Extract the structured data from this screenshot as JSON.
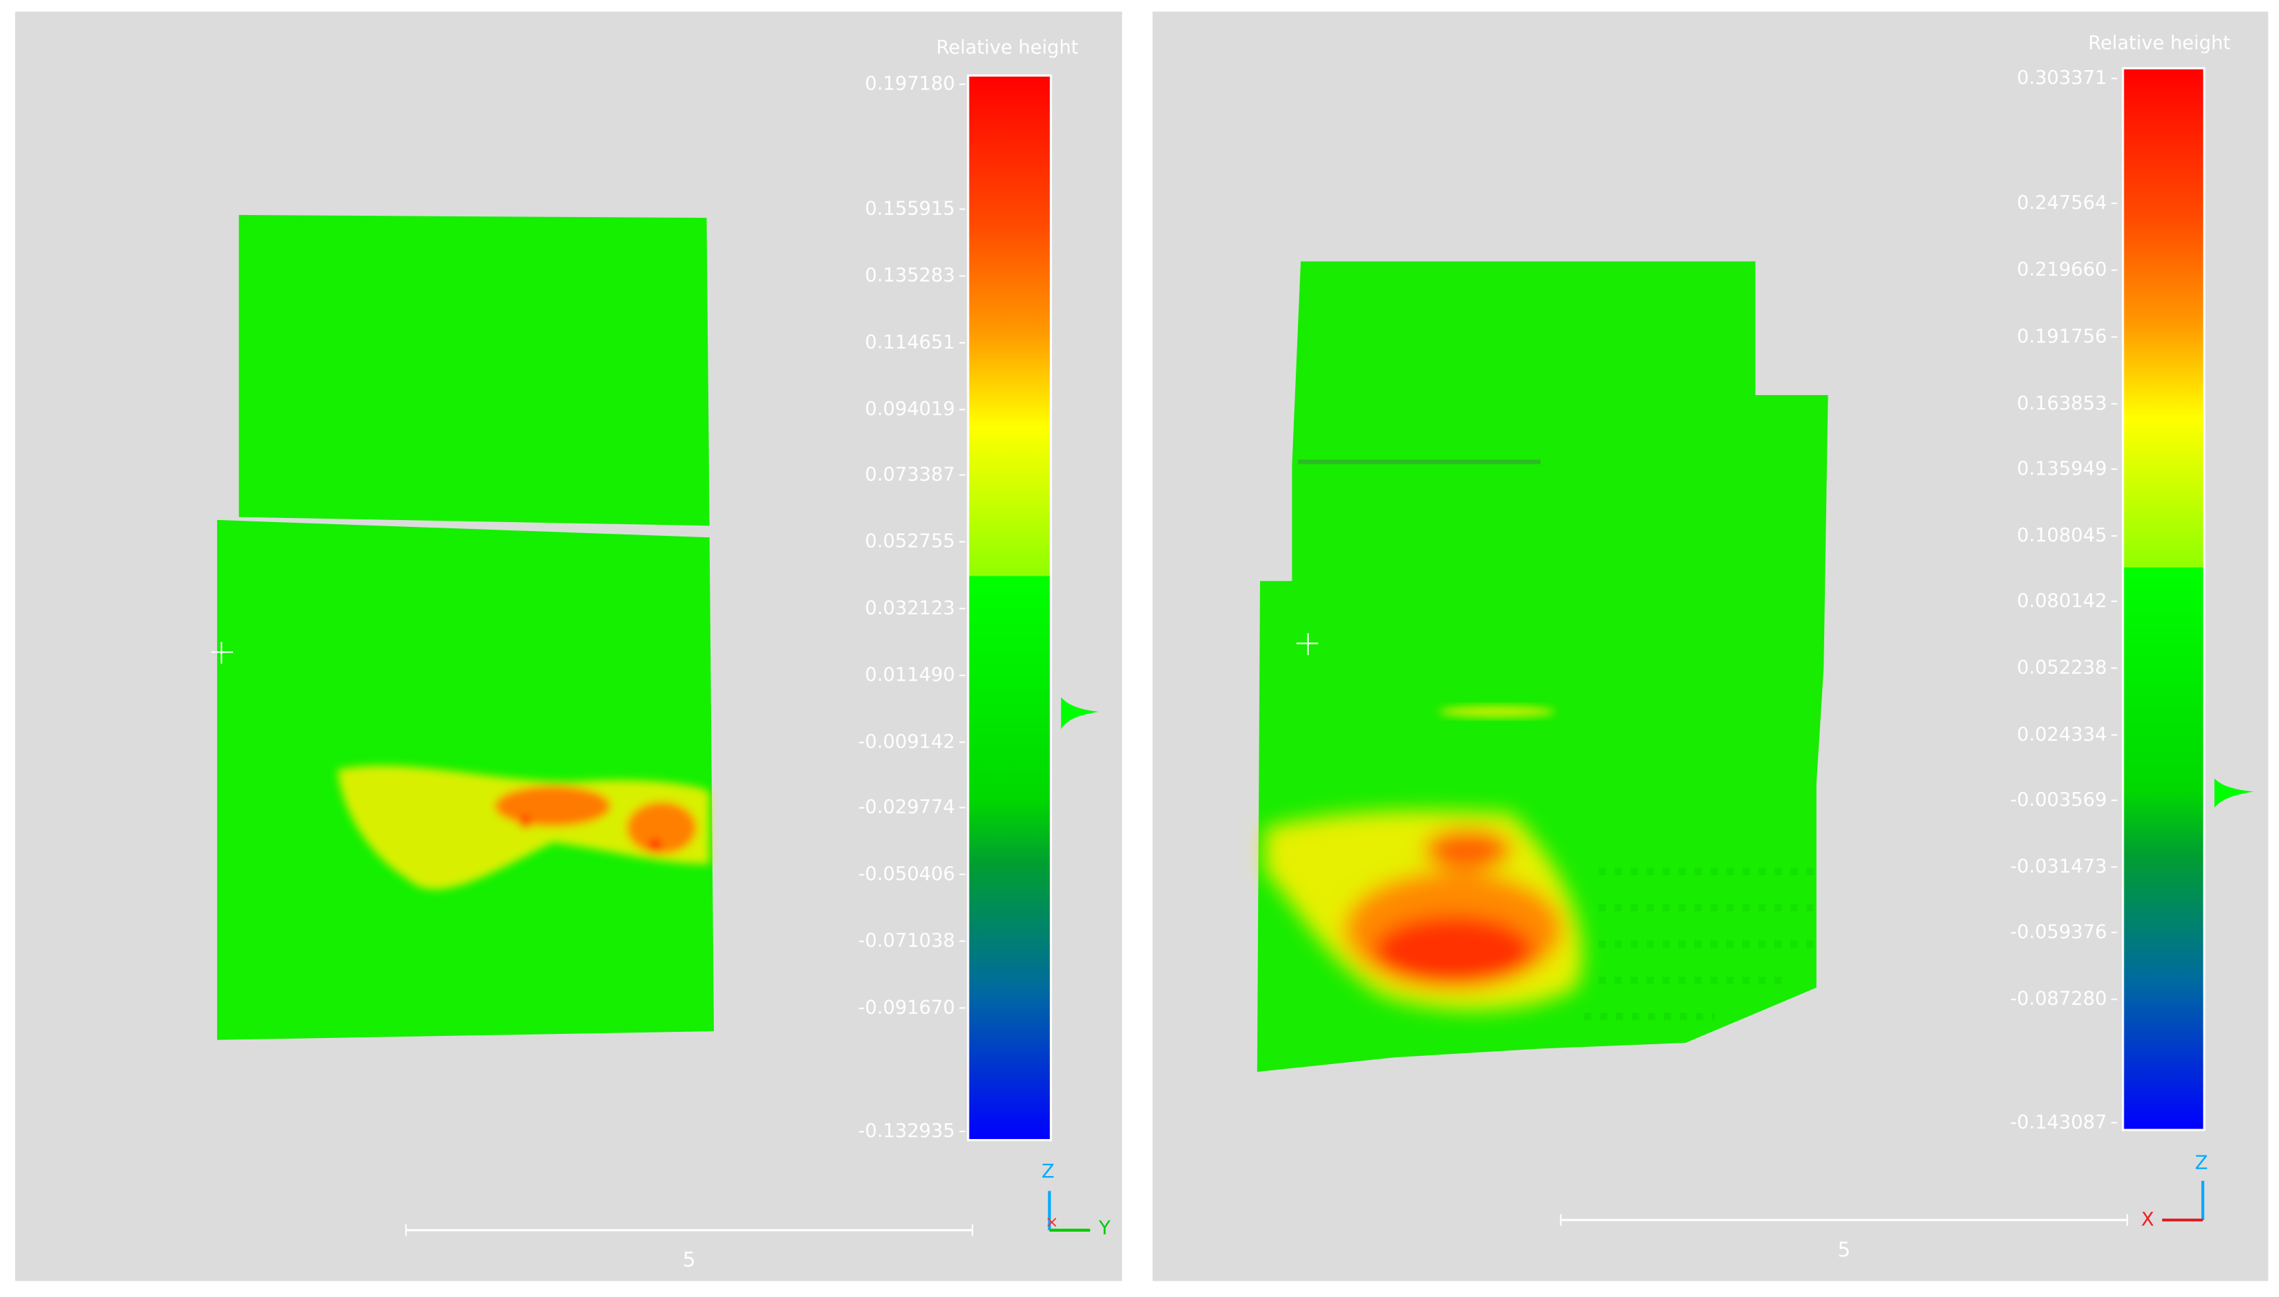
{
  "panels": [
    {
      "color_scale": {
        "title": "Relative height",
        "ticks": [
          "0.197180",
          "0.155915",
          "0.135283",
          "0.114651",
          "0.094019",
          "0.073387",
          "0.052755",
          "0.032123",
          "0.011490",
          "-0.009142",
          "-0.029774",
          "-0.050406",
          "-0.071038",
          "-0.091670",
          "-0.132935"
        ]
      },
      "scale_bar": "5",
      "axes": [
        "Z",
        "Y"
      ]
    },
    {
      "color_scale": {
        "title": "Relative height",
        "ticks": [
          "0.303371",
          "0.247564",
          "0.219660",
          "0.191756",
          "0.163853",
          "0.135949",
          "0.108045",
          "0.080142",
          "0.052238",
          "0.024334",
          "-0.003569",
          "-0.031473",
          "-0.059376",
          "-0.087280",
          "-0.143087"
        ]
      },
      "scale_bar": "5",
      "axes": [
        "Z",
        "X"
      ]
    }
  ]
}
